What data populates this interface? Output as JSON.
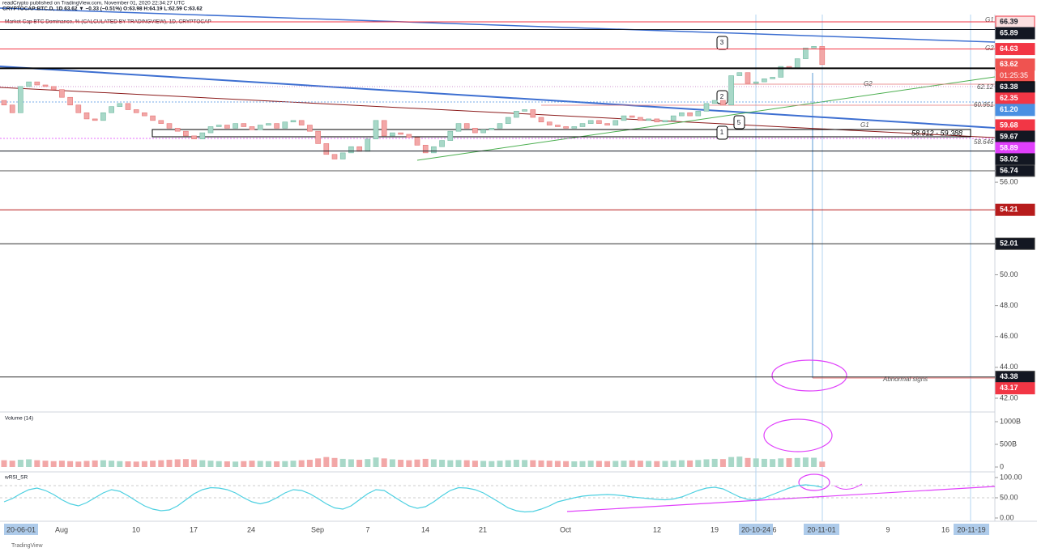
{
  "header": {
    "publisher": "readCrypto published on TradingView.com, November 01, 2020 22:34:27 UTC",
    "symbol": "CRYPTOCAP:BTC.D, 1D 63.62 ▼ −0.33 (−0.51%) O:63.98 H:64.19 L:62.59 C:63.62",
    "indicator": "Market Cap BTC Dominance, % (CALCULATED BY TRADINGVIEW), 1D, CRYPTOCAP"
  },
  "candles": {
    "open": 61.3,
    "rise_color": "#a8d8c8",
    "fall_color": "#f2a7a7",
    "closes": [
      61.0,
      60.5,
      62.2,
      62.5,
      62.3,
      62.2,
      62.0,
      61.5,
      61.0,
      60.5,
      60.1,
      60.0,
      60.5,
      60.9,
      61.1,
      60.7,
      60.5,
      60.3,
      60.0,
      59.8,
      59.5,
      59.3,
      59.0,
      58.8,
      59.2,
      59.6,
      59.7,
      59.5,
      59.8,
      59.6,
      59.4,
      59.7,
      59.8,
      59.5,
      59.9,
      60.0,
      59.7,
      59.3,
      58.5,
      57.8,
      57.5,
      57.9,
      58.3,
      58.0,
      58.8,
      60.0,
      59.0,
      59.2,
      59.1,
      58.9,
      58.4,
      57.9,
      58.3,
      58.7,
      59.3,
      59.8,
      59.5,
      59.2,
      59.4,
      59.5,
      59.8,
      60.2,
      60.6,
      60.7,
      60.2,
      59.9,
      59.7,
      59.6,
      59.5,
      59.6,
      59.8,
      60.0,
      59.8,
      59.7,
      60.0,
      60.3,
      60.2,
      60.0,
      60.1,
      59.9,
      60.0,
      60.3,
      60.5,
      60.3,
      60.6,
      61.1,
      61.3,
      61.0,
      62.9,
      63.1,
      62.4,
      62.5,
      62.7,
      62.8,
      63.5,
      63.4,
      64.0,
      64.7,
      64.8,
      63.62
    ]
  },
  "price_axis": {
    "ylim": [
      42,
      66.39
    ],
    "labels": [
      {
        "value": 56,
        "label": "56.00"
      },
      {
        "value": 50,
        "label": "50.00"
      },
      {
        "value": 48,
        "label": "48.00"
      },
      {
        "value": 46,
        "label": "46.00"
      },
      {
        "value": 44,
        "label": "44.00"
      },
      {
        "value": 42,
        "label": "42.00"
      }
    ]
  },
  "price_tags": [
    {
      "price": 66.39,
      "color": "#fbe0e0",
      "text_color": "#131722",
      "line": "#f23645"
    },
    {
      "price": 65.89,
      "color": "#131722",
      "text_color": "#ffffff",
      "line": "#131722"
    },
    {
      "price": 64.63,
      "color": "#f23645",
      "text_color": "#ffffff",
      "line": "#f23645"
    },
    {
      "price": 63.62,
      "color": "#ef5350",
      "text_color": "#ffffff",
      "line": "none"
    },
    {
      "price": 63.38,
      "color": "#131722",
      "text_color": "#ffffff",
      "line": "#000000"
    },
    {
      "price": 62.35,
      "color": "#f23645",
      "text_color": "#ffffff",
      "line": "none"
    },
    {
      "price": 61.2,
      "label": "61.20",
      "color": "#4a90e2",
      "text_color": "#ffffff",
      "line": "none"
    },
    {
      "price": 59.68,
      "color": "#f23645",
      "text_color": "#ffffff",
      "line": "none"
    },
    {
      "price": 59.67,
      "color": "#131722",
      "text_color": "#ffffff",
      "line": "none"
    },
    {
      "price": 58.89,
      "color": "#e040fb",
      "text_color": "#ffffff",
      "line": "none"
    },
    {
      "price": 58.02,
      "color": "#131722",
      "text_color": "#ffffff",
      "line": "#131722"
    },
    {
      "price": 56.74,
      "color": "#131722",
      "text_color": "#ffffff",
      "line": "#555555"
    },
    {
      "price": 54.21,
      "color": "#b71c1c",
      "text_color": "#ffffff",
      "line": "#b71c1c"
    },
    {
      "price": 52.01,
      "color": "#131722",
      "text_color": "#ffffff",
      "line": "#333333"
    },
    {
      "price": 43.38,
      "color": "#131722",
      "text_color": "#ffffff",
      "line": "#333333"
    },
    {
      "price": 43.17,
      "color": "#f23645",
      "text_color": "#ffffff",
      "line": "none"
    }
  ],
  "countdown": "01:25:35",
  "annotations": {
    "g1_top": "G1",
    "g2_top": "G2",
    "g2_mid": "G2",
    "g1_mid": "G1",
    "p1": "62.12",
    "p2": "60.951",
    "range": "58.912 - 59.388",
    "p3": "58.646",
    "abnormal": "Abnormal signs",
    "m3": "3",
    "m2": "2",
    "m5": "5",
    "m1": "1"
  },
  "volume": {
    "label": "Volume (14)",
    "ylim": [
      0,
      1000
    ],
    "labels": [
      {
        "value": 1000,
        "label": "1000B"
      },
      {
        "value": 500,
        "label": "500B"
      },
      0
    ],
    "values": [
      150,
      140,
      160,
      170,
      150,
      140,
      130,
      140,
      130,
      120,
      135,
      145,
      150,
      140,
      130,
      125,
      120,
      130,
      140,
      150,
      160,
      170,
      175,
      165,
      150,
      140,
      130,
      125,
      120,
      130,
      140,
      135,
      130,
      125,
      130,
      140,
      150,
      160,
      190,
      220,
      200,
      180,
      170,
      160,
      175,
      210,
      190,
      170,
      160,
      150,
      165,
      180,
      170,
      160,
      150,
      155,
      150,
      140,
      135,
      130,
      140,
      150,
      160,
      155,
      150,
      145,
      140,
      135,
      130,
      125,
      130,
      140,
      135,
      130,
      135,
      140,
      145,
      140,
      135,
      130,
      135,
      140,
      150,
      145,
      155,
      170,
      180,
      175,
      220,
      230,
      200,
      190,
      180,
      175,
      190,
      195,
      200,
      210,
      205,
      120
    ]
  },
  "rsi": {
    "label": "wRSI_SR",
    "color": "#4dd0e1",
    "ylim": [
      0,
      100
    ],
    "labels": [
      {
        "value": 100,
        "label": "100.00"
      },
      {
        "value": 50,
        "label": "50.00"
      },
      {
        "value": 0,
        "label": "0.00"
      }
    ],
    "values": [
      40,
      48,
      60,
      70,
      74,
      68,
      58,
      45,
      35,
      30,
      38,
      50,
      62,
      70,
      66,
      55,
      42,
      30,
      22,
      18,
      20,
      30,
      45,
      60,
      70,
      75,
      74,
      70,
      62,
      50,
      40,
      35,
      40,
      50,
      62,
      70,
      68,
      60,
      48,
      35,
      25,
      22,
      30,
      45,
      60,
      70,
      68,
      55,
      42,
      30,
      24,
      28,
      40,
      55,
      68,
      75,
      74,
      70,
      62,
      50,
      38,
      25,
      18,
      15,
      16,
      22,
      30,
      40,
      45,
      50,
      54,
      56,
      57,
      58,
      57,
      55,
      52,
      50,
      48,
      46,
      45,
      47,
      52,
      60,
      68,
      74,
      76,
      72,
      62,
      52,
      46,
      45,
      50,
      58,
      66,
      74,
      80,
      82,
      80,
      76
    ]
  },
  "dates": {
    "d1": "20-06-01",
    "d2": "Aug",
    "d3": "10",
    "d4": "17",
    "d5": "24",
    "d6": "Sep",
    "d7": "7",
    "d8": "14",
    "d9": "21",
    "d10": "Oct",
    "d11": "12",
    "d12": "19",
    "d13": "20-10-24",
    "d14": "6",
    "d15": "20-11-01",
    "d16": "9",
    "d17": "16",
    "d18": "20-11-19"
  },
  "footer": "TradingView"
}
